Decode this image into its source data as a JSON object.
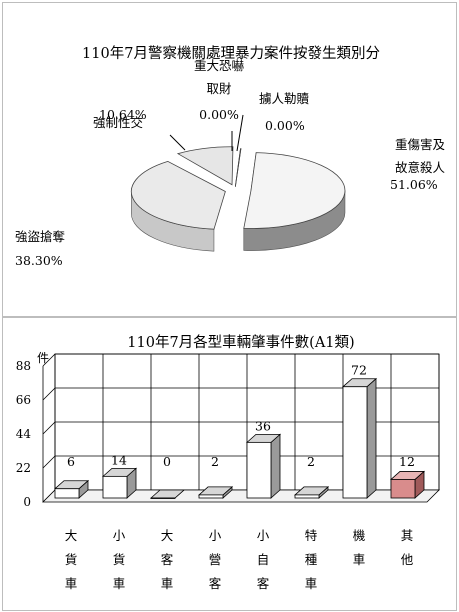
{
  "chart_data": [
    {
      "type": "pie",
      "title": "110年7月警察機關處理暴力案件按發生類別分",
      "slices": [
        {
          "label_lines": [
            "重傷害及",
            "故意殺人"
          ],
          "value": 51.06,
          "value_label": "51.06%",
          "color": "#f4f4f4",
          "side": "#8c8c8c"
        },
        {
          "label_lines": [
            "強盜搶奪"
          ],
          "value": 38.3,
          "value_label": "38.30%",
          "color": "#eaeaea",
          "side": "#c8c8c8"
        },
        {
          "label_lines": [
            "強制性交"
          ],
          "value": 10.64,
          "value_label": "10.64%",
          "color": "#e6e6e6",
          "side": "#b5b5b5"
        },
        {
          "label_lines": [
            "重大恐嚇",
            "取財"
          ],
          "value": 0.0,
          "value_label": "0.00%",
          "color": "#505050",
          "side": "#404040"
        },
        {
          "label_lines": [
            "擄人勒贖"
          ],
          "value": 0.0,
          "value_label": "0.00%",
          "color": "#ffffff",
          "side": "#d0d0d0"
        }
      ]
    },
    {
      "type": "bar",
      "title": "110年7月各型車輛肇事件數(A1類)",
      "ylabel": "件",
      "ylim": [
        0,
        88
      ],
      "yticks": [
        "0",
        "22",
        "44",
        "66",
        "88"
      ],
      "grid": true,
      "categories": [
        "大貨車",
        "小貨車",
        "大客車",
        "小營客",
        "小自客",
        "特種車",
        "機車",
        "其他"
      ],
      "values": [
        6,
        14,
        0,
        2,
        36,
        2,
        72,
        12
      ],
      "value_labels": [
        "6",
        "14",
        "0",
        "2",
        "36",
        "2",
        "72",
        "12"
      ],
      "colors": {
        "bar": "#ffffff",
        "bar_side": "#9a9a9a",
        "bar_top": "#d6d6d6",
        "highlight": "#d98c8c",
        "highlight_side": "#a05a5a",
        "highlight_top": "#e8b4b4"
      }
    }
  ]
}
